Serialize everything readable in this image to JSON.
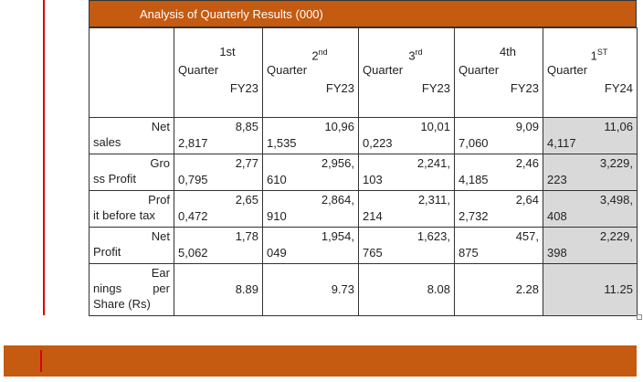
{
  "title": "Analysis of Quarterly Results (000)",
  "header": [
    {
      "number": "1st",
      "sup": null,
      "quarter": "Quarter",
      "year": "FY23"
    },
    {
      "number": "2",
      "sup": "nd",
      "quarter": "Quarter",
      "year": "FY23"
    },
    {
      "number": "3",
      "sup": "rd",
      "quarter": "Quarter",
      "year": "FY23"
    },
    {
      "number": "4th",
      "sup": null,
      "quarter": "Quarter",
      "year": "FY23"
    },
    {
      "number": "1",
      "sup": "ST",
      "quarter": "Quarter",
      "year": "FY24"
    }
  ],
  "rows": [
    {
      "label": [
        "Net",
        "sales"
      ],
      "cells": [
        [
          "8,85",
          "2,817"
        ],
        [
          "10,96",
          "1,535"
        ],
        [
          "10,01",
          "0,223"
        ],
        [
          "9,09",
          "7,060"
        ],
        [
          "11,06",
          "4,117"
        ]
      ]
    },
    {
      "label": [
        "Gro",
        "ss Profit"
      ],
      "cells": [
        [
          "2,77",
          "0,795"
        ],
        [
          "2,956,",
          "610"
        ],
        [
          "2,241,",
          "103"
        ],
        [
          "2,46",
          "4,185"
        ],
        [
          "3,229,",
          "223"
        ]
      ]
    },
    {
      "label": [
        "Prof",
        "it before tax"
      ],
      "cells": [
        [
          "2,65",
          "0,472"
        ],
        [
          "2,864,",
          "910"
        ],
        [
          "2,311,",
          "214"
        ],
        [
          "2,64",
          "2,732"
        ],
        [
          "3,498,",
          "408"
        ]
      ]
    },
    {
      "label": [
        "Net",
        "Profit"
      ],
      "cells": [
        [
          "1,78",
          "5,062"
        ],
        [
          "1,954,",
          "049"
        ],
        [
          "1,623,",
          "765"
        ],
        [
          "457,",
          "875"
        ],
        [
          "2,229,",
          "398"
        ]
      ]
    },
    {
      "label": [
        "Ear",
        "nings per",
        "Share (Rs)"
      ],
      "cells": [
        [
          "8.89"
        ],
        [
          "9.73"
        ],
        [
          "8.08"
        ],
        [
          "2.28"
        ],
        [
          "11.25"
        ]
      ]
    }
  ]
}
